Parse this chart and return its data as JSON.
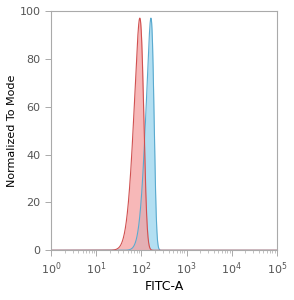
{
  "title": "",
  "xlabel": "FITC-A",
  "ylabel": "Normalized To Mode",
  "ylim": [
    0,
    100
  ],
  "yticks": [
    0,
    20,
    40,
    60,
    80,
    100
  ],
  "red_peak_log": 2.05,
  "red_sigma_log": 0.18,
  "red_skew": -3.0,
  "red_amplitude": 97,
  "blue_peak_log": 2.28,
  "blue_sigma_log": 0.155,
  "blue_skew": -3.5,
  "blue_amplitude": 97,
  "red_fill_color": "#f5a0a0",
  "red_edge_color": "#d05050",
  "blue_fill_color": "#a0d8ef",
  "blue_edge_color": "#5aaacf",
  "red_alpha": 0.75,
  "blue_alpha": 0.8,
  "background_color": "#ffffff",
  "spine_color": "#aaaaaa",
  "fig_width": 2.94,
  "fig_height": 3.0,
  "dpi": 100
}
